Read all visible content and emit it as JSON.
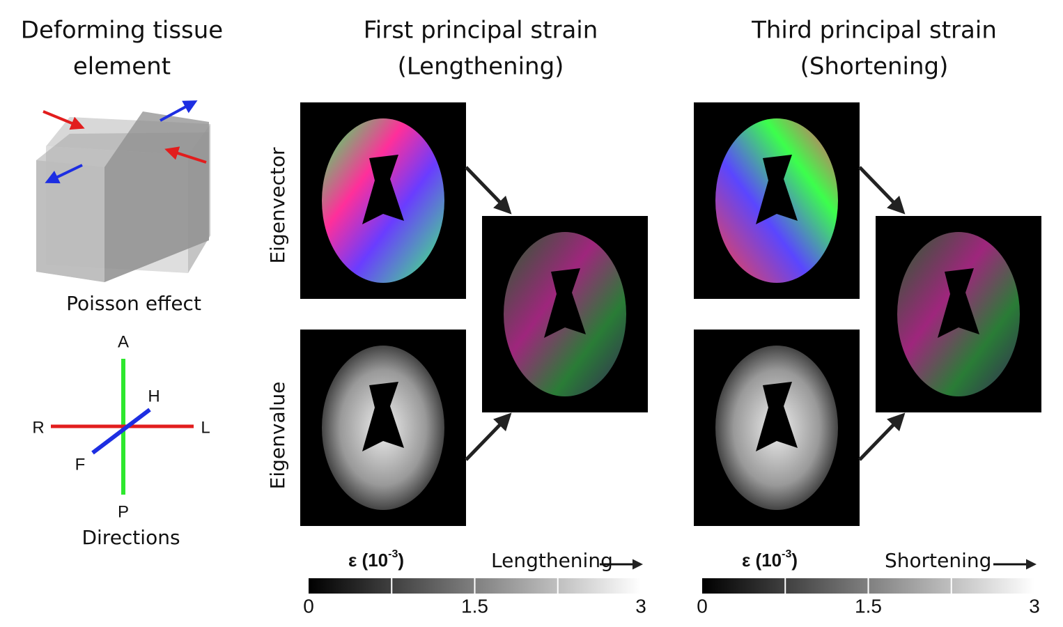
{
  "left_panel": {
    "title_lines": [
      "Deforming tissue",
      "element"
    ],
    "caption": "Poisson effect",
    "directions": {
      "labels": {
        "A": "A",
        "P": "P",
        "R": "R",
        "L": "L",
        "H": "H",
        "F": "F"
      },
      "caption": "Directions"
    }
  },
  "row_labels": [
    "Eigenvector",
    "Eigenvalue"
  ],
  "panels": [
    {
      "title_lines": [
        "First principal strain",
        "(Lengthening)"
      ],
      "colorbar": {
        "unit_prefix": "ε (10",
        "unit_exponent": "-3",
        "unit_suffix": ")",
        "direction": "Lengthening",
        "ticks": [
          "0",
          "1.5",
          "3"
        ]
      }
    },
    {
      "title_lines": [
        "Third principal strain",
        "(Shortening)"
      ],
      "colorbar": {
        "unit_prefix": "ε (10",
        "unit_exponent": "-3",
        "unit_suffix": ")",
        "direction": "Shortening",
        "ticks": [
          "0",
          "1.5",
          "3"
        ]
      }
    }
  ]
}
